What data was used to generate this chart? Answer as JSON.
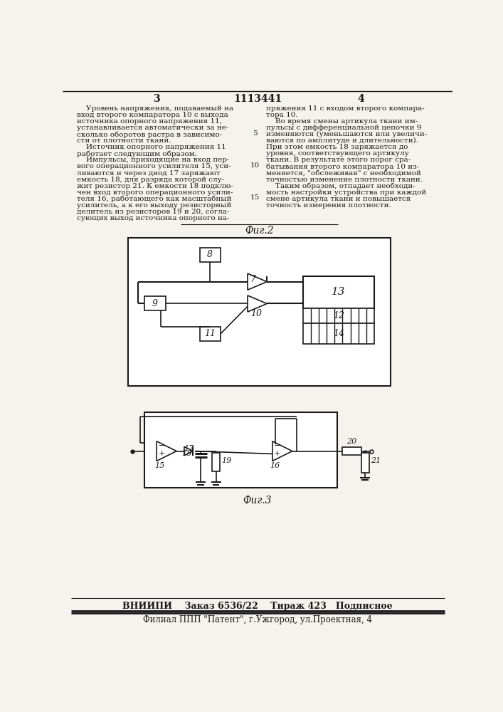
{
  "page_number_left": "3",
  "patent_number": "1113441",
  "page_number_right": "4",
  "bg_color": "#f5f3ee",
  "text_color": "#1a1a1a",
  "line_color": "#1a1a1a",
  "col_left_lines": [
    "    Уровень напряжения, подаваемый на",
    "вход второго компаратора 10 с выхода",
    "источника опорного напряжения 11,",
    "устанавливается автоматически за не-",
    "сколько оборотов растра в зависимо-",
    "сти от плотности ткани.",
    "    Источник опорного напряжения 11",
    "работает следующим образом.",
    "    Импульсы, приходящие на вход пер-",
    "вого операционного усилителя 15, уси-",
    "ливаются и через диод 17 заряжают",
    "емкость 18, для разряда которой слу-",
    "жит резистор 21. К емкости 18 подклю-",
    "чен вход второго операционного усили-",
    "теля 16, работающего как масштабный",
    "усилитель, а к его выходу резисторный",
    "делитель из резисторов 19 и 20, согла-",
    "сующих выход источника опорного на-"
  ],
  "col_right_lines": [
    "пряжения 11 с входом второго компара-",
    "тора 10.",
    "    Во время смены артикула ткани им-",
    "пульсы с дифференциальной цепочки 9",
    "изменяются (уменьшаются или увеличи-",
    "ваются по амплитуде и длительности).",
    "При этом емкость 18 заряжается до",
    "уровня, соответствующего артикулу",
    "ткани. В результате этого порог сра-",
    "батывания второго компаратора 10 из-",
    "меняется, \"обслеживая\" с необходимой",
    "точностью изменение плотности ткани.",
    "    Таким образом, отпадает необходи-",
    "мость настройки устройства при каждой",
    "смене артикула ткани и повышается",
    "точность измерения плотности."
  ],
  "fig2_label": "Фиг.2",
  "fig3_label": "Фиг.3",
  "footer_line1": "ВНИИПИ    Заказ 6536/22    Тираж 423   Подписное",
  "footer_line2": "Филиал ППП \"Патент\", г.Ужгород, ул.Проектная, 4"
}
